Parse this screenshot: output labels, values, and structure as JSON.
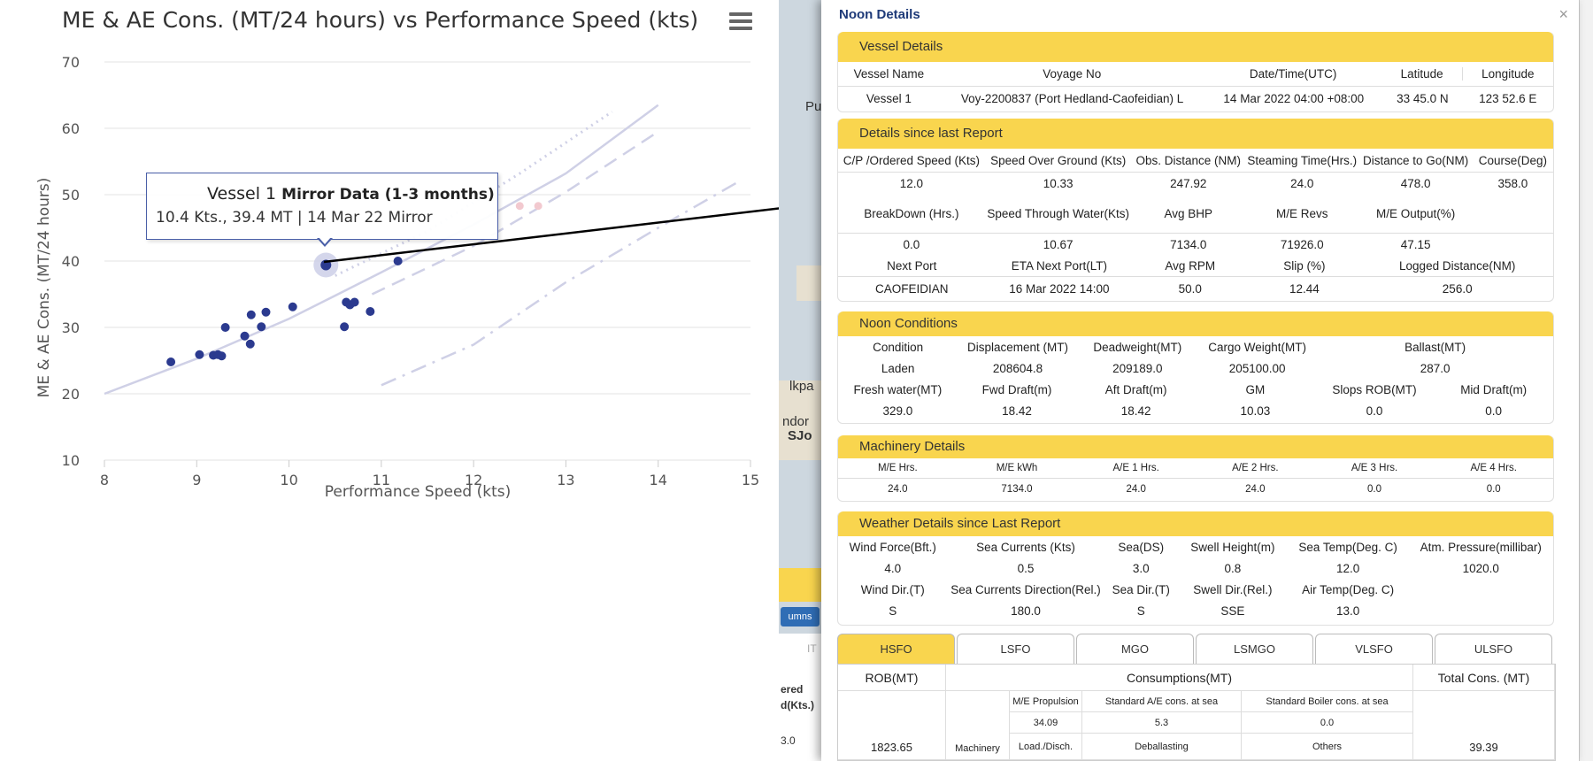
{
  "chart_data": {
    "type": "scatter",
    "title": "ME & AE Cons. (MT/24 hours) vs Performance Speed (kts)",
    "xlabel": "Performance Speed (kts)",
    "ylabel": "ME & AE Cons. (MT/24 hours)",
    "xlim": [
      8,
      15
    ],
    "ylim": [
      10,
      70
    ],
    "xticks": [
      "8",
      "9",
      "10",
      "11",
      "12",
      "13",
      "14",
      "15"
    ],
    "yticks": [
      "10",
      "20",
      "30",
      "40",
      "50",
      "60",
      "70"
    ],
    "grid": true,
    "points": [
      {
        "x": 8.72,
        "y": 24.8
      },
      {
        "x": 9.03,
        "y": 25.9
      },
      {
        "x": 9.18,
        "y": 25.8
      },
      {
        "x": 9.23,
        "y": 25.9
      },
      {
        "x": 9.27,
        "y": 25.7
      },
      {
        "x": 9.31,
        "y": 30.0
      },
      {
        "x": 9.52,
        "y": 28.7
      },
      {
        "x": 9.58,
        "y": 27.5
      },
      {
        "x": 9.59,
        "y": 31.9
      },
      {
        "x": 9.7,
        "y": 30.1
      },
      {
        "x": 9.75,
        "y": 32.3
      },
      {
        "x": 10.04,
        "y": 33.1
      },
      {
        "x": 10.6,
        "y": 30.1
      },
      {
        "x": 10.62,
        "y": 33.8
      },
      {
        "x": 10.66,
        "y": 33.4
      },
      {
        "x": 10.71,
        "y": 33.8
      },
      {
        "x": 10.88,
        "y": 32.4
      },
      {
        "x": 11.18,
        "y": 40.0
      }
    ],
    "highlight": {
      "x": 10.4,
      "y": 39.4
    },
    "faded_points": [
      {
        "x": 12.5,
        "y": 48.3
      },
      {
        "x": 12.7,
        "y": 48.3
      }
    ],
    "curves": [
      {
        "style": "solid",
        "points": [
          [
            8,
            20
          ],
          [
            9,
            25.3
          ],
          [
            10,
            31.3
          ],
          [
            11,
            38.3
          ],
          [
            12,
            45.5
          ],
          [
            13,
            53.2
          ],
          [
            14,
            63.5
          ]
        ]
      },
      {
        "style": "dotted",
        "points": [
          [
            10.5,
            37.8
          ],
          [
            11.5,
            44.5
          ],
          [
            12.5,
            53.2
          ],
          [
            13.5,
            62.5
          ]
        ]
      },
      {
        "style": "dashed",
        "points": [
          [
            10.9,
            35.0
          ],
          [
            12,
            42.3
          ],
          [
            13,
            50.4
          ],
          [
            14,
            59.5
          ]
        ]
      },
      {
        "style": "dash-dot",
        "points": [
          [
            11,
            21.3
          ],
          [
            12,
            27.4
          ],
          [
            13,
            36.8
          ],
          [
            14,
            45.0
          ],
          [
            14.9,
            52.2
          ]
        ]
      }
    ]
  },
  "tooltip": {
    "vessel": "Vessel 1",
    "series": "Mirror Data (1-3 months)",
    "detail": "10.4 Kts., 39.4 MT | 14 Mar 22 Mirror"
  },
  "background": {
    "map_labels": [
      "Pu",
      "lkpa",
      "ndor",
      "SJo"
    ],
    "columns_btn": "umns",
    "col_header_1": "ered",
    "col_header_2": "d(Kts.)",
    "col_value": "3.0",
    "col_sort": "IT"
  },
  "modal": {
    "title": "Noon Details",
    "close": "×",
    "vessel_details": {
      "heading": "Vessel Details",
      "headers": [
        "Vessel Name",
        "Voyage No",
        "Date/Time(UTC)",
        "Latitude",
        "Longitude"
      ],
      "values": [
        "Vessel 1",
        "Voy-2200837 (Port Hedland-Caofeidian) L",
        "14 Mar 2022 04:00 +08:00",
        "33 45.0 N",
        "123 52.6 E"
      ]
    },
    "since_last": {
      "heading": "Details since last Report",
      "r1_headers": [
        "C/P /Ordered Speed (Kts)",
        "Speed Over Ground (Kts)",
        "Obs. Distance (NM)",
        "Steaming Time(Hrs.)",
        "Distance to Go(NM)",
        "Course(Deg)"
      ],
      "r1_values": [
        "12.0",
        "10.33",
        "247.92",
        "24.0",
        "478.0",
        "358.0"
      ],
      "r2_headers": [
        "BreakDown (Hrs.)",
        "Speed Through Water(Kts)",
        "Avg BHP",
        "M/E Revs",
        "M/E Output(%)"
      ],
      "r2_values": [
        "0.0",
        "10.67",
        "7134.0",
        "71926.0",
        "47.15"
      ],
      "r3_headers": [
        "Next Port",
        "ETA Next Port(LT)",
        "Avg RPM",
        "Slip (%)",
        "Logged Distance(NM)"
      ],
      "r3_values": [
        "CAOFEIDIAN",
        "16 Mar 2022 14:00",
        "50.0",
        "12.44",
        "256.0"
      ]
    },
    "noon_conditions": {
      "heading": "Noon Conditions",
      "r1_headers": [
        "Condition",
        "Displacement (MT)",
        "Deadweight(MT)",
        "Cargo Weight(MT)",
        "Ballast(MT)"
      ],
      "r1_values": [
        "Laden",
        "208604.8",
        "209189.0",
        "205100.00",
        "287.0"
      ],
      "r2_headers": [
        "Fresh water(MT)",
        "Fwd Draft(m)",
        "Aft Draft(m)",
        "GM",
        "Slops ROB(MT)",
        "Mid Draft(m)"
      ],
      "r2_values": [
        "329.0",
        "18.42",
        "18.42",
        "10.03",
        "0.0",
        "0.0"
      ]
    },
    "machinery": {
      "heading": "Machinery Details",
      "headers": [
        "M/E Hrs.",
        "M/E kWh",
        "A/E 1 Hrs.",
        "A/E 2 Hrs.",
        "A/E 3 Hrs.",
        "A/E 4 Hrs."
      ],
      "values": [
        "24.0",
        "7134.0",
        "24.0",
        "24.0",
        "0.0",
        "0.0"
      ]
    },
    "weather": {
      "heading": "Weather Details since Last Report",
      "r1_headers": [
        "Wind Force(Bft.)",
        "Sea Currents (Kts)",
        "Sea(DS)",
        "Swell Height(m)",
        "Sea Temp(Deg. C)",
        "Atm. Pressure(millibar)"
      ],
      "r1_values": [
        "4.0",
        "0.5",
        "3.0",
        "0.8",
        "12.0",
        "1020.0"
      ],
      "r2_headers": [
        "Wind Dir.(T)",
        "Sea Currents Direction(Rel.)",
        "Sea Dir.(T)",
        "Swell Dir.(Rel.)",
        "Air Temp(Deg. C)"
      ],
      "r2_values": [
        "S",
        "180.0",
        "S",
        "SSE",
        "13.0"
      ]
    },
    "fuel_tabs": [
      "HSFO",
      "LSFO",
      "MGO",
      "LSMGO",
      "VLSFO",
      "ULSFO"
    ],
    "consumption": {
      "rob_header": "ROB(MT)",
      "cons_header": "Consumptions(MT)",
      "total_header": "Total Cons. (MT)",
      "me_prop_label": "M/E Propulsion",
      "me_prop_value": "34.09",
      "std_ae_label": "Standard A/E cons. at sea",
      "std_ae_value": "5.3",
      "std_boiler_label": "Standard Boiler cons. at sea",
      "std_boiler_value": "0.0",
      "rob_value": "1823.65",
      "machinery_label": "Machinery",
      "load_label": "Load./Disch.",
      "deballast_label": "Deballasting",
      "others_label": "Others",
      "total_value": "39.39"
    }
  }
}
